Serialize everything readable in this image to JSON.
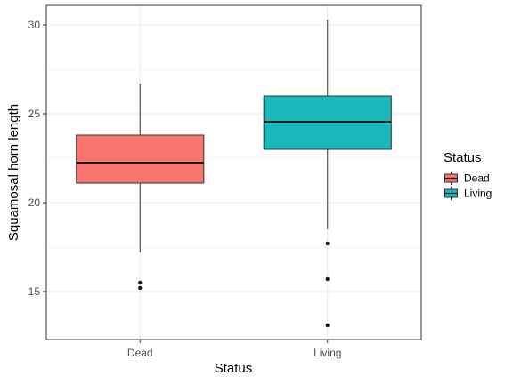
{
  "chart_data": {
    "type": "boxplot",
    "xlabel": "Status",
    "ylabel": "Squamosal horn length",
    "ylim": [
      12.3,
      31.1
    ],
    "yticks": [
      15,
      20,
      25,
      30
    ],
    "grid": true,
    "legend_position": "right",
    "legend_title": "Status",
    "categories": [
      "Dead",
      "Living"
    ],
    "series": [
      {
        "name": "Dead",
        "color": "#F8766D",
        "whisker_low": 17.2,
        "q1": 21.1,
        "median": 22.25,
        "q3": 23.8,
        "whisker_high": 26.7,
        "outliers": [
          15.5,
          15.2
        ]
      },
      {
        "name": "Living",
        "color": "#19B8BC",
        "whisker_low": 18.5,
        "q1": 23.0,
        "median": 24.55,
        "q3": 26.0,
        "whisker_high": 30.3,
        "outliers": [
          17.7,
          15.7,
          13.1
        ]
      }
    ]
  }
}
